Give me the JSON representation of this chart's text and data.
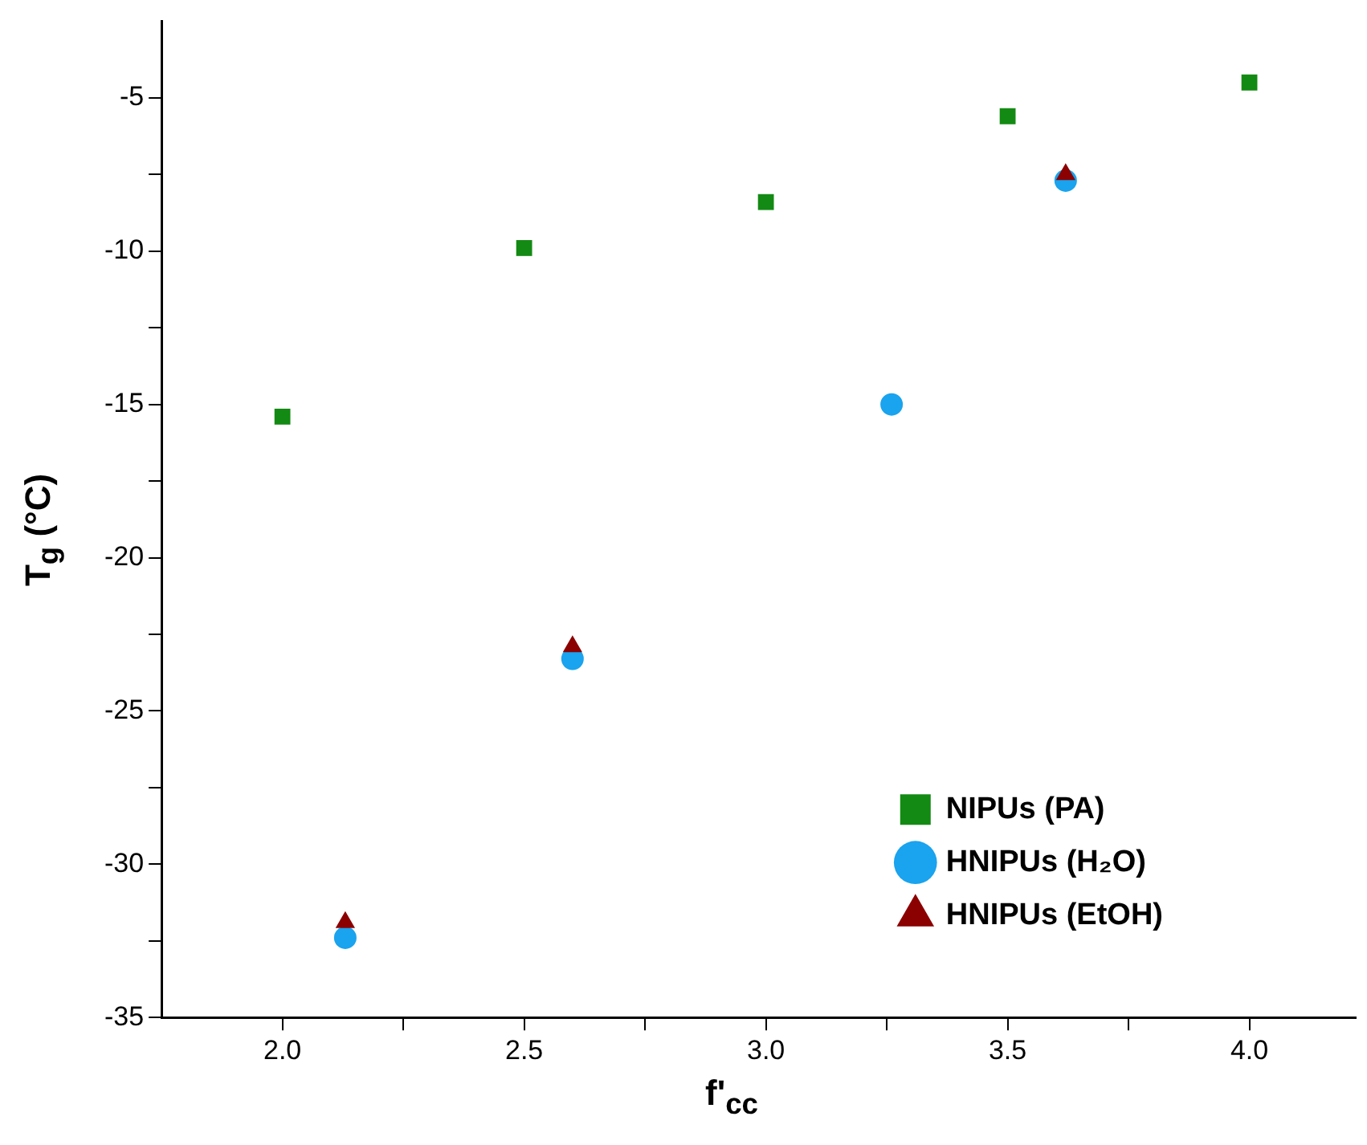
{
  "chart_data": {
    "type": "scatter",
    "xlabel": "f'$_{cc}$",
    "ylabel": "T$_{g}$ (°C)",
    "xlim": [
      1.75,
      4.22
    ],
    "ylim": [
      -35,
      -2.5
    ],
    "xticks": [
      {
        "value": 2.0,
        "label": "2.0"
      },
      {
        "value": 2.25,
        "label": null
      },
      {
        "value": 2.5,
        "label": "2.5"
      },
      {
        "value": 2.75,
        "label": null
      },
      {
        "value": 3.0,
        "label": "3.0"
      },
      {
        "value": 3.25,
        "label": null
      },
      {
        "value": 3.5,
        "label": "3.5"
      },
      {
        "value": 3.75,
        "label": null
      },
      {
        "value": 4.0,
        "label": "4.0"
      }
    ],
    "yticks": [
      -35,
      {
        "value": -32.5,
        "label": null
      },
      -30,
      {
        "value": -27.5,
        "label": null
      },
      -25,
      {
        "value": -22.5,
        "label": null
      },
      -20,
      {
        "value": -17.5,
        "label": null
      },
      -15,
      {
        "value": -12.5,
        "label": null
      },
      -10,
      {
        "value": -7.5,
        "label": null
      },
      -5
    ],
    "grid": false,
    "legend": "bottom right",
    "series": [
      {
        "name": "NIPUs (PA)",
        "color": "#138a13",
        "marker": "square",
        "x": [
          2.0,
          2.5,
          3.0,
          3.5,
          4.0
        ],
        "values": [
          -15.4,
          -9.9,
          -8.4,
          -5.6,
          -4.5
        ]
      },
      {
        "name": "HNIPUs (H₂O)",
        "color": "#1aa3ee",
        "marker": "circle",
        "x": [
          2.13,
          2.6,
          3.26,
          3.62
        ],
        "values": [
          -32.4,
          -23.3,
          -15.0,
          -7.7
        ]
      },
      {
        "name": "HNIPUs (EtOH)",
        "color": "#8b0000",
        "marker": "triangle",
        "x": [
          2.13,
          2.6,
          3.62
        ],
        "values": [
          -31.9,
          -22.9,
          -7.5
        ]
      }
    ]
  }
}
